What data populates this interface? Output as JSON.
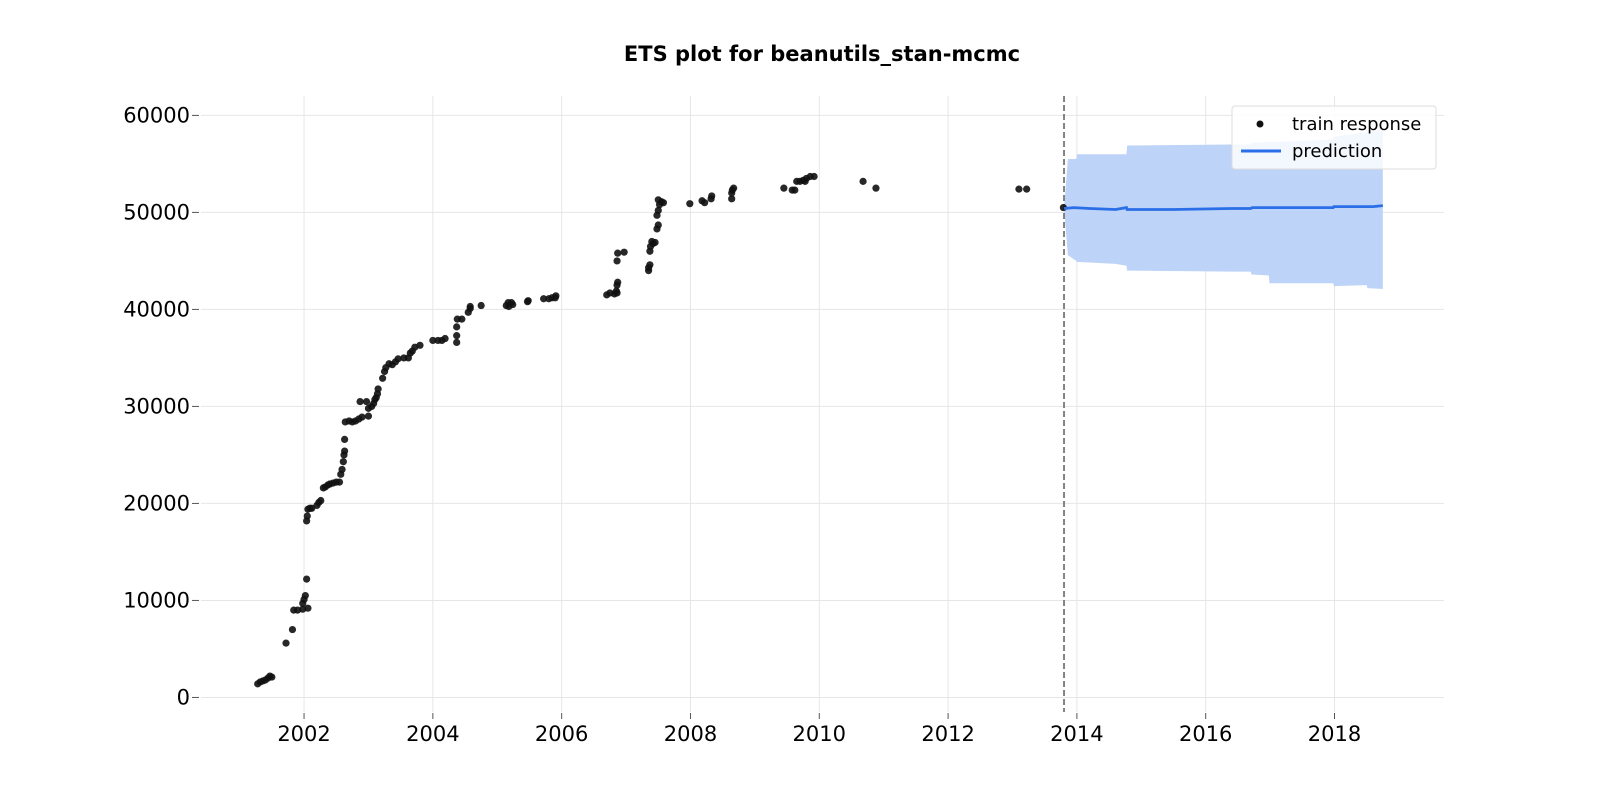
{
  "chart_data": {
    "type": "scatter",
    "title": "ETS plot for beanutils_stan-mcmc",
    "xlabel": "",
    "ylabel": "",
    "xlim": [
      2000.4,
      2019.7
    ],
    "ylim": [
      -1500,
      62000
    ],
    "x_ticks": [
      2002,
      2004,
      2006,
      2008,
      2010,
      2012,
      2014,
      2016,
      2018
    ],
    "y_ticks": [
      0,
      10000,
      20000,
      30000,
      40000,
      50000,
      60000
    ],
    "grid": true,
    "legend_position": "top-right",
    "colors": {
      "train": "#111111",
      "prediction": "#2a6ee8",
      "band": "#bed3f8",
      "cutoff": "#777777"
    },
    "train_cutoff_x": 2013.8,
    "series": [
      {
        "name": "train response",
        "kind": "scatter",
        "points": [
          [
            2001.28,
            1400
          ],
          [
            2001.32,
            1600
          ],
          [
            2001.36,
            1700
          ],
          [
            2001.4,
            1800
          ],
          [
            2001.44,
            2000
          ],
          [
            2001.47,
            2200
          ],
          [
            2001.5,
            2100
          ],
          [
            2001.72,
            5600
          ],
          [
            2001.82,
            7000
          ],
          [
            2001.84,
            9000
          ],
          [
            2001.9,
            9000
          ],
          [
            2001.98,
            9100
          ],
          [
            2002.06,
            9200
          ],
          [
            2001.98,
            9700
          ],
          [
            2002.0,
            10100
          ],
          [
            2002.02,
            10500
          ],
          [
            2002.04,
            12200
          ],
          [
            2002.04,
            18200
          ],
          [
            2002.05,
            18700
          ],
          [
            2002.06,
            19400
          ],
          [
            2002.09,
            19500
          ],
          [
            2002.12,
            19500
          ],
          [
            2002.2,
            19800
          ],
          [
            2002.23,
            20100
          ],
          [
            2002.26,
            20300
          ],
          [
            2002.3,
            21600
          ],
          [
            2002.33,
            21700
          ],
          [
            2002.37,
            21900
          ],
          [
            2002.4,
            22000
          ],
          [
            2002.45,
            22100
          ],
          [
            2002.5,
            22200
          ],
          [
            2002.55,
            22200
          ],
          [
            2002.57,
            23000
          ],
          [
            2002.59,
            23500
          ],
          [
            2002.61,
            24300
          ],
          [
            2002.62,
            25000
          ],
          [
            2002.63,
            25400
          ],
          [
            2002.63,
            26600
          ],
          [
            2002.64,
            28400
          ],
          [
            2002.7,
            28500
          ],
          [
            2002.75,
            28400
          ],
          [
            2002.8,
            28500
          ],
          [
            2002.85,
            28700
          ],
          [
            2002.9,
            28900
          ],
          [
            2002.87,
            30500
          ],
          [
            2002.97,
            30500
          ],
          [
            2003.0,
            29000
          ],
          [
            2003.0,
            29800
          ],
          [
            2003.05,
            30000
          ],
          [
            2003.08,
            30300
          ],
          [
            2003.1,
            30700
          ],
          [
            2003.12,
            30900
          ],
          [
            2003.14,
            31300
          ],
          [
            2003.15,
            31800
          ],
          [
            2003.22,
            32900
          ],
          [
            2003.25,
            33600
          ],
          [
            2003.27,
            34000
          ],
          [
            2003.32,
            34400
          ],
          [
            2003.37,
            34300
          ],
          [
            2003.42,
            34600
          ],
          [
            2003.46,
            34900
          ],
          [
            2003.55,
            35000
          ],
          [
            2003.62,
            35000
          ],
          [
            2003.65,
            35500
          ],
          [
            2003.68,
            35700
          ],
          [
            2003.72,
            36100
          ],
          [
            2003.8,
            36300
          ],
          [
            2004.0,
            36800
          ],
          [
            2004.08,
            36800
          ],
          [
            2004.14,
            36800
          ],
          [
            2004.19,
            37000
          ],
          [
            2004.37,
            36600
          ],
          [
            2004.37,
            37300
          ],
          [
            2004.37,
            38200
          ],
          [
            2004.38,
            39000
          ],
          [
            2004.45,
            39000
          ],
          [
            2004.55,
            39700
          ],
          [
            2004.58,
            40100
          ],
          [
            2004.58,
            40300
          ],
          [
            2004.75,
            40400
          ],
          [
            2005.14,
            40400
          ],
          [
            2005.17,
            40700
          ],
          [
            2005.22,
            40700
          ],
          [
            2005.24,
            40500
          ],
          [
            2005.18,
            40300
          ],
          [
            2005.47,
            40800
          ],
          [
            2005.48,
            40900
          ],
          [
            2005.72,
            41100
          ],
          [
            2005.8,
            41100
          ],
          [
            2005.85,
            41200
          ],
          [
            2005.9,
            41200
          ],
          [
            2005.91,
            41400
          ],
          [
            2006.7,
            41500
          ],
          [
            2006.75,
            41700
          ],
          [
            2006.82,
            41600
          ],
          [
            2006.85,
            41900
          ],
          [
            2006.86,
            41700
          ],
          [
            2006.86,
            42500
          ],
          [
            2006.87,
            42800
          ],
          [
            2006.86,
            45000
          ],
          [
            2006.87,
            45800
          ],
          [
            2006.97,
            45900
          ],
          [
            2007.35,
            44000
          ],
          [
            2007.35,
            44300
          ],
          [
            2007.37,
            44600
          ],
          [
            2007.37,
            46000
          ],
          [
            2007.38,
            46500
          ],
          [
            2007.4,
            47000
          ],
          [
            2007.42,
            46800
          ],
          [
            2007.45,
            46900
          ],
          [
            2007.48,
            48300
          ],
          [
            2007.5,
            48700
          ],
          [
            2007.48,
            49700
          ],
          [
            2007.5,
            50200
          ],
          [
            2007.52,
            50800
          ],
          [
            2007.55,
            51100
          ],
          [
            2007.5,
            51300
          ],
          [
            2007.58,
            51000
          ],
          [
            2007.99,
            50900
          ],
          [
            2008.18,
            51200
          ],
          [
            2008.22,
            51000
          ],
          [
            2008.32,
            51400
          ],
          [
            2008.33,
            51700
          ],
          [
            2008.64,
            51400
          ],
          [
            2008.64,
            52000
          ],
          [
            2008.65,
            52300
          ],
          [
            2008.67,
            52500
          ],
          [
            2009.45,
            52500
          ],
          [
            2009.58,
            52300
          ],
          [
            2009.62,
            52300
          ],
          [
            2009.65,
            53200
          ],
          [
            2009.7,
            53200
          ],
          [
            2009.75,
            53300
          ],
          [
            2009.8,
            53500
          ],
          [
            2009.78,
            53200
          ],
          [
            2009.86,
            53700
          ],
          [
            2009.92,
            53700
          ],
          [
            2010.68,
            53200
          ],
          [
            2010.88,
            52500
          ],
          [
            2013.1,
            52400
          ],
          [
            2013.22,
            52400
          ],
          [
            2013.79,
            50500
          ]
        ]
      },
      {
        "name": "prediction",
        "kind": "line",
        "points": [
          [
            2013.8,
            50400
          ],
          [
            2013.95,
            50500
          ],
          [
            2014.2,
            50400
          ],
          [
            2014.6,
            50300
          ],
          [
            2014.77,
            50500
          ],
          [
            2014.78,
            50300
          ],
          [
            2015.5,
            50300
          ],
          [
            2016.4,
            50400
          ],
          [
            2016.7,
            50400
          ],
          [
            2016.72,
            50500
          ],
          [
            2017.2,
            50500
          ],
          [
            2017.98,
            50500
          ],
          [
            2017.99,
            50600
          ],
          [
            2018.6,
            50600
          ],
          [
            2018.75,
            50700
          ]
        ]
      },
      {
        "name": "",
        "kind": "band",
        "upper": [
          [
            2013.8,
            50400
          ],
          [
            2013.86,
            55500
          ],
          [
            2013.99,
            55500
          ],
          [
            2014.0,
            56000
          ],
          [
            2014.6,
            56000
          ],
          [
            2014.77,
            56000
          ],
          [
            2014.78,
            56900
          ],
          [
            2016.4,
            57000
          ],
          [
            2016.7,
            57000
          ],
          [
            2016.71,
            57200
          ],
          [
            2017.2,
            57300
          ],
          [
            2017.98,
            57500
          ],
          [
            2017.99,
            57800
          ],
          [
            2018.75,
            58500
          ]
        ],
        "lower": [
          [
            2013.8,
            50400
          ],
          [
            2013.86,
            45600
          ],
          [
            2013.99,
            45000
          ],
          [
            2014.0,
            44900
          ],
          [
            2014.6,
            44700
          ],
          [
            2014.77,
            44500
          ],
          [
            2014.78,
            44000
          ],
          [
            2016.4,
            43900
          ],
          [
            2016.7,
            43900
          ],
          [
            2016.71,
            43600
          ],
          [
            2016.98,
            43500
          ],
          [
            2016.99,
            42700
          ],
          [
            2017.98,
            42700
          ],
          [
            2017.99,
            42400
          ],
          [
            2018.5,
            42500
          ],
          [
            2018.51,
            42200
          ],
          [
            2018.75,
            42100
          ]
        ]
      }
    ]
  }
}
